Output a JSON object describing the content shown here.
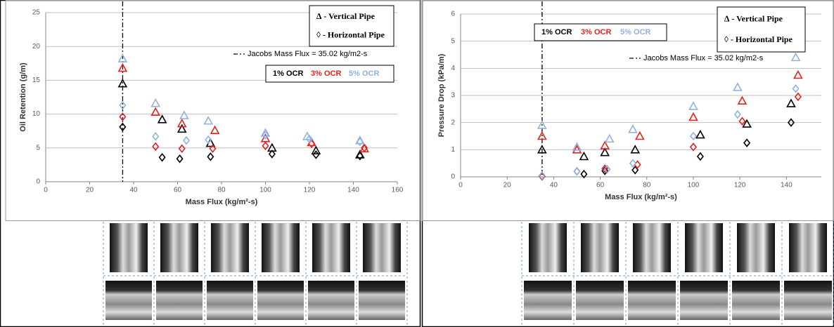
{
  "chart_data": [
    {
      "type": "scatter",
      "xlabel": "Mass Flux (kg/m²-s)",
      "ylabel": "Oil Retention (g/m)",
      "xlim": [
        0,
        160
      ],
      "xticks": [
        0,
        20,
        40,
        60,
        80,
        100,
        120,
        140,
        160
      ],
      "ylim": [
        0,
        25
      ],
      "yticks": [
        0,
        5,
        10,
        15,
        20,
        25
      ],
      "grid": true,
      "reference_line": {
        "x": 35.02,
        "label": "Jacobs Mass Flux = 35.02 kg/m2-s"
      },
      "pipe_legend": [
        "∆ - Vertical Pipe",
        "◊ - Horizontal Pipe"
      ],
      "series": [
        {
          "name": "1% OCR",
          "color": "#000000",
          "vertical": {
            "x": [
              35,
              53,
              62,
              75,
              103,
              123,
              143
            ],
            "values": [
              14.5,
              9.2,
              7.8,
              5.7,
              5.0,
              4.6,
              4.0
            ]
          },
          "horizontal": {
            "x": [
              35,
              53,
              61,
              75,
              103,
              123,
              143
            ],
            "values": [
              8.1,
              3.6,
              3.4,
              3.7,
              4.1,
              4.0,
              3.8
            ]
          }
        },
        {
          "name": "3% OCR",
          "color": "#e8211f",
          "vertical": {
            "x": [
              35,
              50,
              62,
              77,
              100,
              121,
              145
            ],
            "values": [
              16.8,
              10.3,
              8.6,
              7.6,
              6.4,
              5.8,
              4.9
            ]
          },
          "horizontal": {
            "x": [
              35,
              50,
              62,
              76,
              100,
              121,
              145
            ],
            "values": [
              9.6,
              5.2,
              4.9,
              4.9,
              5.3,
              5.6,
              5.0
            ]
          }
        },
        {
          "name": "5% OCR",
          "color": "#8db3e2",
          "vertical": {
            "x": [
              35,
              50,
              63,
              74,
              100,
              119,
              143
            ],
            "values": [
              18.2,
              11.6,
              9.8,
              9.0,
              7.2,
              6.7,
              6.1
            ]
          },
          "horizontal": {
            "x": [
              35,
              50,
              64,
              74,
              100,
              120,
              143
            ],
            "values": [
              11.3,
              6.7,
              6.1,
              6.2,
              6.9,
              6.3,
              5.9
            ]
          }
        }
      ]
    },
    {
      "type": "scatter",
      "xlabel": "Mass Flux (kg/m²-s)",
      "ylabel": "Pressure Drop (kPa/m)",
      "xlim": [
        0,
        155
      ],
      "xticks": [
        0,
        20,
        40,
        60,
        80,
        100,
        120,
        140
      ],
      "ylim": [
        0,
        6
      ],
      "yticks": [
        0,
        1,
        2,
        3,
        4,
        5,
        6
      ],
      "grid": true,
      "reference_line": {
        "x": 35.02,
        "label": "Jacobs Mass Flux = 35.02 kg/m2-s"
      },
      "pipe_legend": [
        "∆ - Vertical Pipe",
        "◊ - Horizontal Pipe"
      ],
      "series": [
        {
          "name": "1% OCR",
          "color": "#000000",
          "vertical": {
            "x": [
              35,
              53,
              62,
              75,
              103,
              123,
              142
            ],
            "values": [
              1.0,
              0.75,
              0.9,
              1.0,
              1.55,
              1.95,
              2.7
            ]
          },
          "horizontal": {
            "x": [
              35,
              53,
              62,
              75,
              103,
              123,
              142
            ],
            "values": [
              0.02,
              0.1,
              0.22,
              0.25,
              0.75,
              1.25,
              2.0
            ]
          }
        },
        {
          "name": "3% OCR",
          "color": "#e8211f",
          "vertical": {
            "x": [
              35,
              50,
              62,
              77,
              100,
              121,
              145
            ],
            "values": [
              1.5,
              1.0,
              1.15,
              1.5,
              2.2,
              2.8,
              3.75
            ]
          },
          "horizontal": {
            "x": [
              35,
              50,
              62,
              76,
              100,
              121,
              145
            ],
            "values": [
              0.02,
              0.2,
              0.3,
              0.45,
              1.1,
              2.05,
              2.95
            ]
          }
        },
        {
          "name": "5% OCR",
          "color": "#8db3e2",
          "vertical": {
            "x": [
              35,
              50,
              64,
              74,
              100,
              119,
              144
            ],
            "values": [
              1.9,
              1.1,
              1.4,
              1.75,
              2.6,
              3.3,
              4.4
            ]
          },
          "horizontal": {
            "x": [
              35,
              50,
              63,
              74,
              100,
              119,
              144
            ],
            "values": [
              0.05,
              0.2,
              0.28,
              0.5,
              1.5,
              2.3,
              3.25
            ]
          }
        }
      ]
    }
  ]
}
